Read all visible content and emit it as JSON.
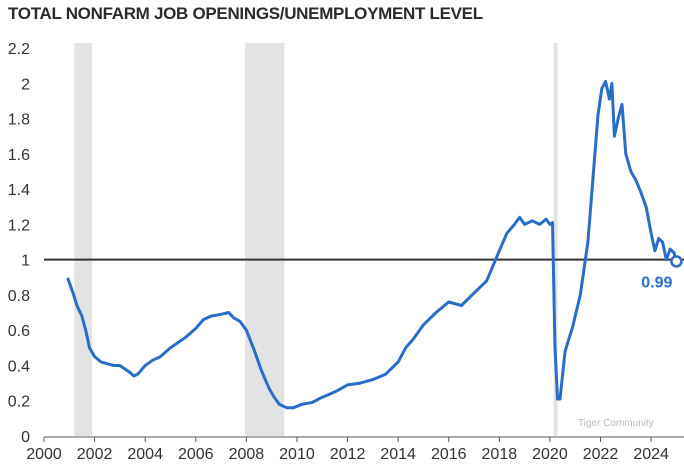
{
  "chart_data": {
    "type": "line",
    "title": "TOTAL NONFARM JOB OPENINGS/UNEMPLOYMENT LEVEL",
    "xlabel": "",
    "ylabel": "",
    "xlim": [
      2000,
      2025.3
    ],
    "ylim": [
      0,
      2.2
    ],
    "x_ticks": [
      2000,
      2002,
      2004,
      2006,
      2008,
      2010,
      2012,
      2014,
      2016,
      2018,
      2020,
      2022,
      2024
    ],
    "y_ticks": [
      {
        "value": 0,
        "label": "0"
      },
      {
        "value": 0.2,
        "label": "0.2"
      },
      {
        "value": 0.4,
        "label": "0.4"
      },
      {
        "value": 0.6,
        "label": "0.6"
      },
      {
        "value": 0.8,
        "label": "0.8"
      },
      {
        "value": 1.0,
        "label": "1"
      },
      {
        "value": 1.2,
        "label": "1.2"
      },
      {
        "value": 1.4,
        "label": "1.4"
      },
      {
        "value": 1.6,
        "label": "1.6"
      },
      {
        "value": 1.8,
        "label": "1.8"
      },
      {
        "value": 2.0,
        "label": "2"
      },
      {
        "value": 2.2,
        "label": "2.2"
      }
    ],
    "reference_line": {
      "value": 1.0
    },
    "recessions": [
      [
        2001.2,
        2001.9
      ],
      [
        2007.95,
        2009.5
      ],
      [
        2020.15,
        2020.3
      ]
    ],
    "end_label": "0.99",
    "colors": {
      "line": "#2a6dc9",
      "reference": "#333333",
      "recession": "#e2e3e5",
      "label": "#2a6dc9"
    },
    "series": [
      {
        "points": [
          [
            2000.95,
            0.89
          ],
          [
            2001.15,
            0.81
          ],
          [
            2001.3,
            0.74
          ],
          [
            2001.5,
            0.68
          ],
          [
            2001.65,
            0.6
          ],
          [
            2001.8,
            0.5
          ],
          [
            2002.0,
            0.45
          ],
          [
            2002.25,
            0.42
          ],
          [
            2002.5,
            0.41
          ],
          [
            2002.75,
            0.4
          ],
          [
            2003.0,
            0.4
          ],
          [
            2003.2,
            0.38
          ],
          [
            2003.4,
            0.36
          ],
          [
            2003.55,
            0.34
          ],
          [
            2003.7,
            0.35
          ],
          [
            2004.0,
            0.4
          ],
          [
            2004.3,
            0.43
          ],
          [
            2004.6,
            0.45
          ],
          [
            2005.0,
            0.5
          ],
          [
            2005.3,
            0.53
          ],
          [
            2005.6,
            0.56
          ],
          [
            2006.0,
            0.61
          ],
          [
            2006.3,
            0.66
          ],
          [
            2006.6,
            0.68
          ],
          [
            2007.0,
            0.69
          ],
          [
            2007.3,
            0.7
          ],
          [
            2007.5,
            0.67
          ],
          [
            2007.75,
            0.65
          ],
          [
            2008.0,
            0.6
          ],
          [
            2008.3,
            0.49
          ],
          [
            2008.6,
            0.37
          ],
          [
            2008.9,
            0.27
          ],
          [
            2009.1,
            0.22
          ],
          [
            2009.3,
            0.18
          ],
          [
            2009.6,
            0.16
          ],
          [
            2009.85,
            0.16
          ],
          [
            2010.2,
            0.18
          ],
          [
            2010.6,
            0.19
          ],
          [
            2011.0,
            0.22
          ],
          [
            2011.5,
            0.25
          ],
          [
            2012.0,
            0.29
          ],
          [
            2012.5,
            0.3
          ],
          [
            2013.0,
            0.32
          ],
          [
            2013.5,
            0.35
          ],
          [
            2014.0,
            0.42
          ],
          [
            2014.3,
            0.5
          ],
          [
            2014.6,
            0.55
          ],
          [
            2015.0,
            0.63
          ],
          [
            2015.5,
            0.7
          ],
          [
            2016.0,
            0.76
          ],
          [
            2016.5,
            0.74
          ],
          [
            2017.0,
            0.81
          ],
          [
            2017.5,
            0.88
          ],
          [
            2018.0,
            1.05
          ],
          [
            2018.3,
            1.15
          ],
          [
            2018.6,
            1.2
          ],
          [
            2018.8,
            1.24
          ],
          [
            2019.0,
            1.2
          ],
          [
            2019.3,
            1.22
          ],
          [
            2019.6,
            1.2
          ],
          [
            2019.85,
            1.23
          ],
          [
            2020.0,
            1.2
          ],
          [
            2020.1,
            1.21
          ],
          [
            2020.2,
            0.5
          ],
          [
            2020.3,
            0.21
          ],
          [
            2020.4,
            0.21
          ],
          [
            2020.6,
            0.48
          ],
          [
            2020.9,
            0.62
          ],
          [
            2021.2,
            0.8
          ],
          [
            2021.5,
            1.1
          ],
          [
            2021.75,
            1.55
          ],
          [
            2021.9,
            1.82
          ],
          [
            2022.05,
            1.97
          ],
          [
            2022.2,
            2.01
          ],
          [
            2022.35,
            1.91
          ],
          [
            2022.45,
            2.0
          ],
          [
            2022.55,
            1.7
          ],
          [
            2022.7,
            1.8
          ],
          [
            2022.85,
            1.88
          ],
          [
            2023.0,
            1.6
          ],
          [
            2023.2,
            1.5
          ],
          [
            2023.4,
            1.45
          ],
          [
            2023.6,
            1.38
          ],
          [
            2023.8,
            1.3
          ],
          [
            2024.0,
            1.15
          ],
          [
            2024.15,
            1.05
          ],
          [
            2024.3,
            1.12
          ],
          [
            2024.45,
            1.1
          ],
          [
            2024.6,
            1.0
          ],
          [
            2024.75,
            1.06
          ],
          [
            2024.9,
            1.04
          ],
          [
            2025.0,
            0.99
          ]
        ]
      }
    ]
  },
  "watermark": "Tiger Community"
}
